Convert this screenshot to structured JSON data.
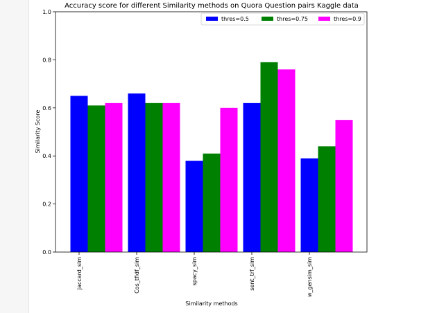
{
  "chart_data": {
    "type": "bar",
    "title": "Accuracy score for different Similarity methods on Quora Question pairs Kaggle data",
    "xlabel": "Similarity methods",
    "ylabel": "Similarity Score",
    "ylim": [
      0,
      1.0
    ],
    "yticks": [
      "0.0",
      "0.2",
      "0.4",
      "0.6",
      "0.8",
      "1.0"
    ],
    "categories": [
      "jaccard_sim",
      "Cos_tfidf_sim",
      "spacy_sim",
      "sent_trf_sim",
      "w_gensim_sim"
    ],
    "series": [
      {
        "name": "thres=0.5",
        "color": "#0000ff",
        "values": [
          0.65,
          0.66,
          0.38,
          0.62,
          0.39
        ]
      },
      {
        "name": "thres=0.75",
        "color": "#008000",
        "values": [
          0.61,
          0.62,
          0.41,
          0.79,
          0.44
        ]
      },
      {
        "name": "thres=0.9",
        "color": "#ff00ff",
        "values": [
          0.62,
          0.62,
          0.6,
          0.76,
          0.55
        ]
      }
    ],
    "grid": false,
    "legend_position": "top-right"
  }
}
